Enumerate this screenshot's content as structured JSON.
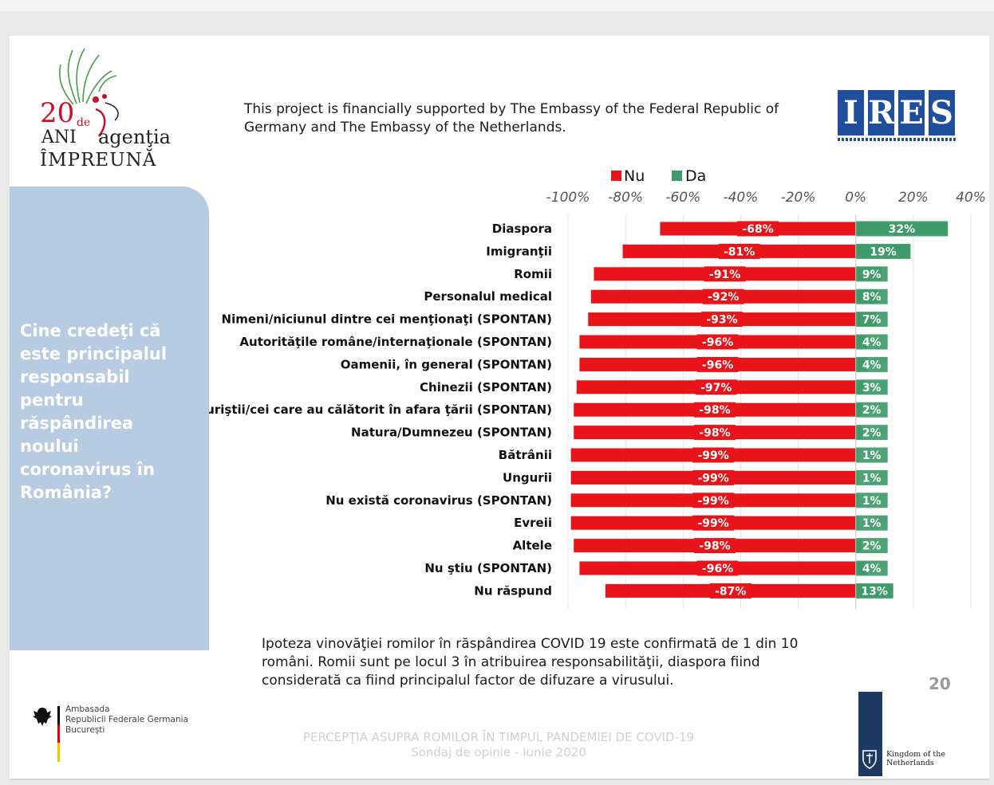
{
  "header": {
    "support_text": "This project is financially supported by The Embassy of the Federal Republic of Germany and The Embassy of the Netherlands."
  },
  "logos": {
    "agentia_number": "20",
    "agentia_de": "de",
    "agentia_ani": "ANI",
    "agentia_name": "agenţia",
    "agentia_impreuna": "ÎMPREUNĂ",
    "ires_letters": [
      "I",
      "R",
      "E",
      "S"
    ],
    "ires_color": "#1f4e9c",
    "germany_embassy": [
      "Ambasada",
      "Republicii Federale Germania",
      "Bucureşti"
    ],
    "netherlands": "Kingdom of the Netherlands"
  },
  "question": "Cine credeţi că este principalul responsabil pentru răspândirea noului coronavirus în România?",
  "conclusion": "Ipoteza vinovăţiei romilor în răspândirea COVID 19 este confirmată de 1 din 10 români. Romii sunt pe locul 3 în atribuirea responsabilităţii, diaspora fiind considerată ca fiind principalul factor de difuzare a virusului.",
  "page_number": "20",
  "footer": {
    "title": "PERCEPŢIA ASUPRA ROMILOR ÎN TIMPUL PANDEMIEI DE COVID-19",
    "subtitle": "Sondaj de opinie - Iunie 2020"
  },
  "chart_data": {
    "type": "bar",
    "orientation": "horizontal",
    "stacked": "diverging",
    "categories": [
      "Diaspora",
      "Imigranţii",
      "Romii",
      "Personalul medical",
      "Nimeni/niciunul dintre cei menţionaţi (SPONTAN)",
      "Autorităţile române/internaţionale (SPONTAN)",
      "Oamenii, în general (SPONTAN)",
      "Chinezii (SPONTAN)",
      "Turiştii/cei care au călătorit în afara ţării (SPONTAN)",
      "Natura/Dumnezeu (SPONTAN)",
      "Bătrânii",
      "Ungurii",
      "Nu există coronavirus (SPONTAN)",
      "Evreii",
      "Altele",
      "Nu ştiu (SPONTAN)",
      "Nu răspund"
    ],
    "series": [
      {
        "name": "Nu",
        "color": "#e8141a",
        "values": [
          -68,
          -81,
          -91,
          -92,
          -93,
          -96,
          -96,
          -97,
          -98,
          -98,
          -99,
          -99,
          -99,
          -99,
          -98,
          -96,
          -87
        ],
        "labels": [
          "-68%",
          "-81%",
          "-91%",
          "-92%",
          "-93%",
          "-96%",
          "-96%",
          "-97%",
          "-98%",
          "-98%",
          "-99%",
          "-99%",
          "-99%",
          "-99%",
          "-98%",
          "-96%",
          "-87%"
        ]
      },
      {
        "name": "Da",
        "color": "#3f9b6a",
        "values": [
          32,
          19,
          9,
          8,
          7,
          4,
          4,
          3,
          2,
          2,
          1,
          1,
          1,
          1,
          2,
          4,
          13
        ],
        "labels": [
          "32%",
          "19%",
          "9%",
          "8%",
          "7%",
          "4%",
          "4%",
          "3%",
          "2%",
          "2%",
          "1%",
          "1%",
          "1%",
          "1%",
          "2%",
          "4%",
          "13%"
        ]
      }
    ],
    "xlim": [
      -100,
      40
    ],
    "xticks": [
      -100,
      -80,
      -60,
      -40,
      -20,
      0,
      20,
      40
    ],
    "xtick_labels": [
      "-100%",
      "-80%",
      "-60%",
      "-40%",
      "-20%",
      "0%",
      "20%",
      "40%"
    ],
    "grid": true,
    "legend": "top"
  }
}
